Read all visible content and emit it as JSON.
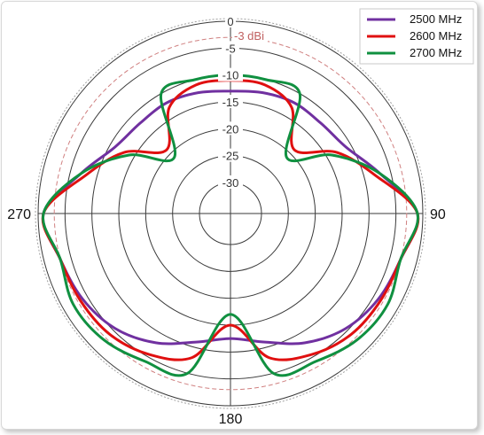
{
  "chart_data": {
    "type": "polar-line",
    "title": "",
    "radial_axis": {
      "min": -30,
      "max": 0,
      "ticks": [
        0,
        -5,
        -10,
        -15,
        -20,
        -25,
        -30
      ],
      "tick_labels": [
        "0",
        "-5",
        "-10",
        "-15",
        "-20",
        "-25",
        "-30"
      ]
    },
    "reference_circle": {
      "value": -3,
      "label": "-3 dBi",
      "color": "#d08080"
    },
    "angle_labels": [
      {
        "angle": 90,
        "label": "90"
      },
      {
        "angle": 180,
        "label": "180"
      },
      {
        "angle": 270,
        "label": "270"
      }
    ],
    "legend": {
      "placement": "top-right"
    },
    "series": [
      {
        "name": "2500 MHz",
        "color": "#7030a0",
        "angles": [
          0,
          15,
          30,
          45,
          60,
          75,
          90,
          105,
          120,
          135,
          150,
          165,
          180,
          195,
          210,
          225,
          240,
          255,
          270,
          285,
          300,
          315,
          330,
          345
        ],
        "values": [
          -13,
          -12.5,
          -12,
          -12,
          -11,
          -7,
          -1,
          -3,
          -4,
          -5.5,
          -8,
          -11,
          -12.5,
          -11,
          -8,
          -5.5,
          -4,
          -3,
          -1,
          -7,
          -11,
          -12,
          -12,
          -12.5
        ]
      },
      {
        "name": "2600 MHz",
        "color": "#e01010",
        "angles": [
          0,
          15,
          30,
          45,
          60,
          75,
          90,
          105,
          120,
          135,
          150,
          165,
          180,
          195,
          210,
          225,
          240,
          255,
          270,
          285,
          300,
          315,
          330,
          345
        ],
        "values": [
          -11,
          -11,
          -13,
          -19,
          -13,
          -8,
          -1,
          -3,
          -3.5,
          -4,
          -5.5,
          -8,
          -15,
          -8,
          -5.5,
          -4,
          -3.5,
          -3,
          -1,
          -8,
          -13,
          -19,
          -13,
          -11
        ]
      },
      {
        "name": "2700 MHz",
        "color": "#109040",
        "angles": [
          0,
          15,
          30,
          45,
          60,
          75,
          90,
          105,
          120,
          135,
          150,
          165,
          180,
          195,
          210,
          225,
          240,
          255,
          270,
          285,
          300,
          315,
          330,
          345
        ],
        "values": [
          -10,
          -10,
          -10,
          -21,
          -14,
          -7,
          -1,
          -3,
          -2,
          -2.5,
          -4,
          -5,
          -17,
          -5,
          -4,
          -2.5,
          -2,
          -3,
          -1,
          -7,
          -14,
          -21,
          -10,
          -10
        ]
      }
    ]
  }
}
